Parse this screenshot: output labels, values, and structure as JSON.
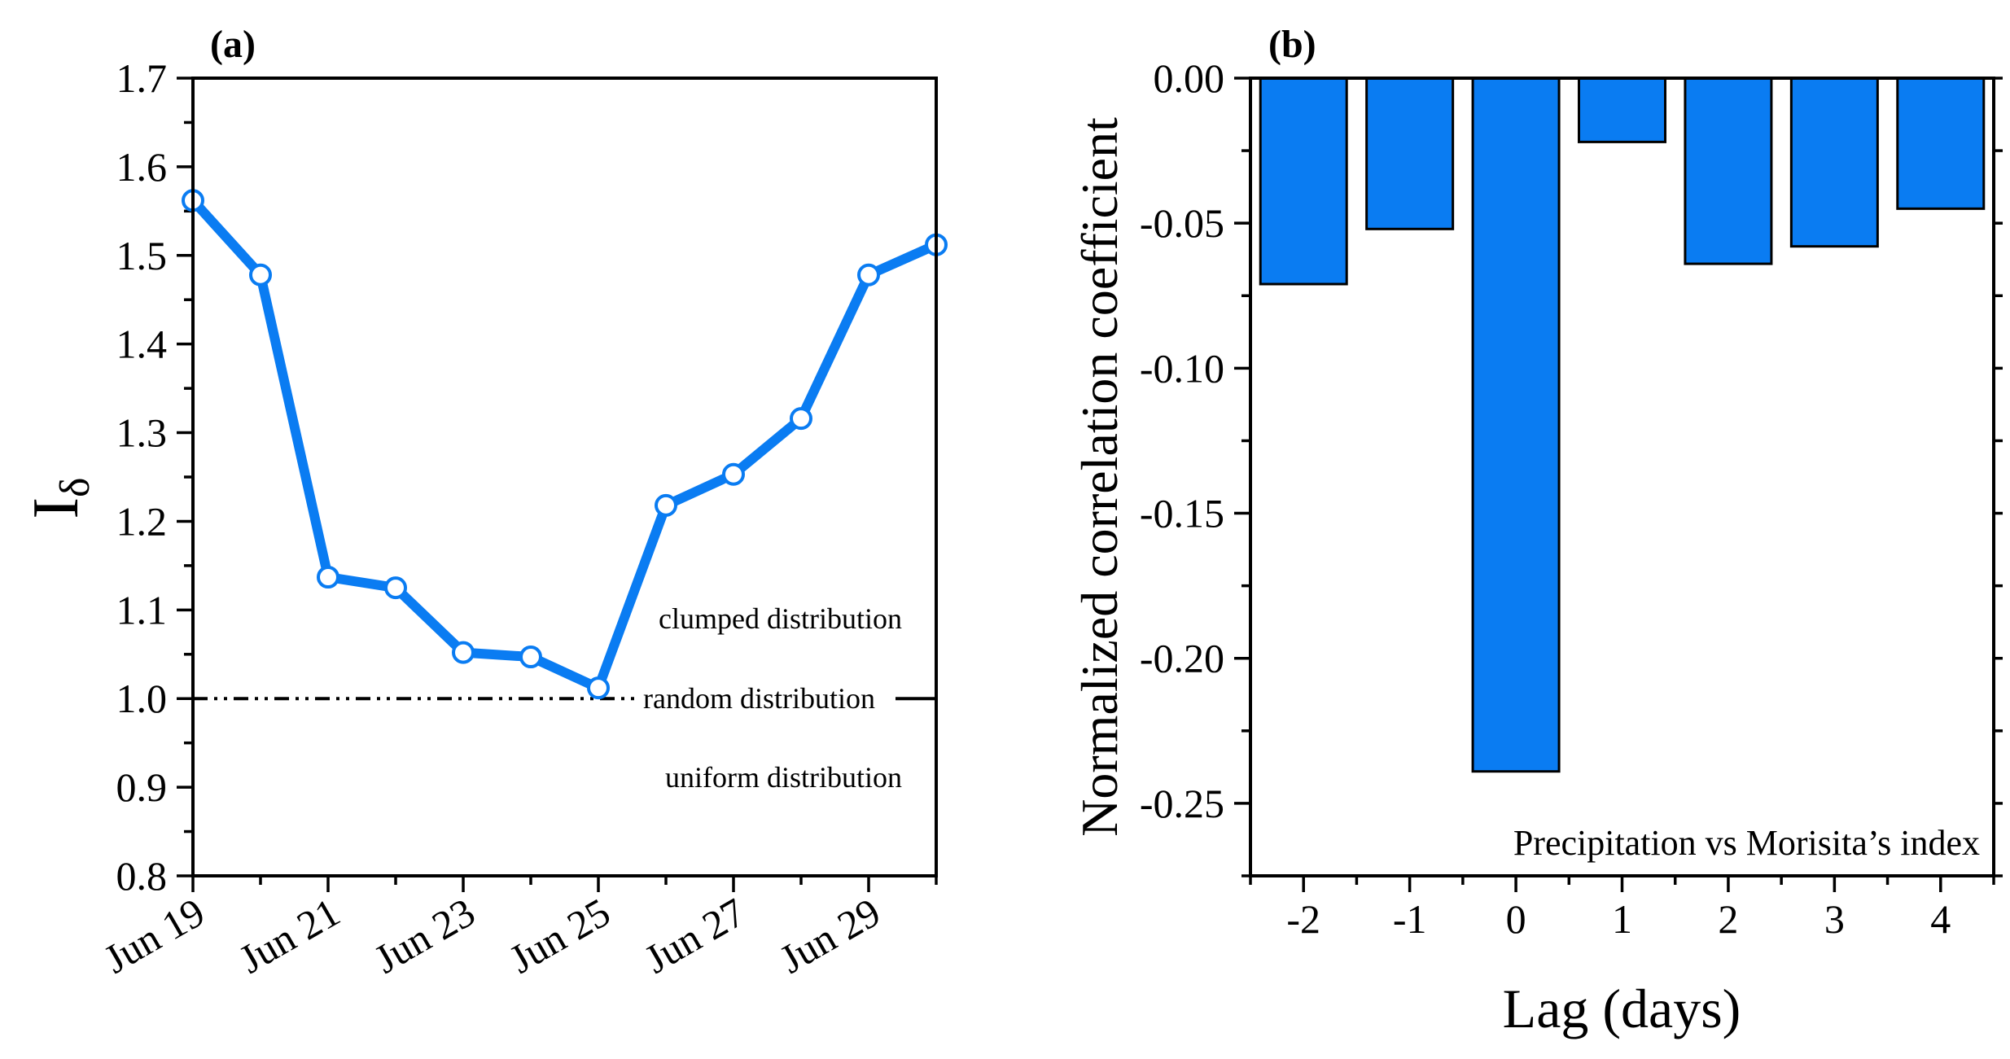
{
  "colors": {
    "series": "#0a7cf2",
    "bar": "#0a7cf2",
    "reference_line": "#000000"
  },
  "chart_data": [
    {
      "panel_label": "(a)",
      "type": "line",
      "x": [
        "Jun 19",
        "Jun 20",
        "Jun 21",
        "Jun 22",
        "Jun 23",
        "Jun 24",
        "Jun 25",
        "Jun 26",
        "Jun 27",
        "Jun 28",
        "Jun 29",
        "Jun 30"
      ],
      "values": [
        1.562,
        1.478,
        1.137,
        1.125,
        1.052,
        1.047,
        1.012,
        1.218,
        1.253,
        1.316,
        1.478,
        1.512
      ],
      "xtick_labels": [
        "Jun 19",
        "Jun 21",
        "Jun 23",
        "Jun 25",
        "Jun 27",
        "Jun 29"
      ],
      "ylabel_main": "I",
      "ylabel_sub": "δ",
      "ylim": [
        0.8,
        1.7
      ],
      "yticks": [
        0.8,
        0.9,
        1.0,
        1.1,
        1.2,
        1.3,
        1.4,
        1.5,
        1.6,
        1.7
      ],
      "ytick_labels": [
        "0.8",
        "0.9",
        "1.0",
        "1.1",
        "1.2",
        "1.3",
        "1.4",
        "1.5",
        "1.6",
        "1.7"
      ],
      "reference_line": 1.0,
      "annotations": [
        "clumped distribution",
        "random distribution",
        "uniform distribution"
      ],
      "grid": false
    },
    {
      "panel_label": "(b)",
      "type": "bar",
      "categories": [
        "-2",
        "-1",
        "0",
        "1",
        "2",
        "3",
        "4"
      ],
      "values": [
        -0.071,
        -0.052,
        -0.239,
        -0.022,
        -0.064,
        -0.058,
        -0.045
      ],
      "xlabel": "Lag (days)",
      "ylabel": "Normalized correlation coefficient",
      "ylim": [
        -0.275,
        0.0
      ],
      "yticks": [
        0.0,
        -0.05,
        -0.1,
        -0.15,
        -0.2,
        -0.25
      ],
      "ytick_labels": [
        "0.00",
        "-0.05",
        "-0.10",
        "-0.15",
        "-0.20",
        "-0.25"
      ],
      "legend_text": "Precipitation vs Morisita’s index",
      "grid": false
    }
  ]
}
